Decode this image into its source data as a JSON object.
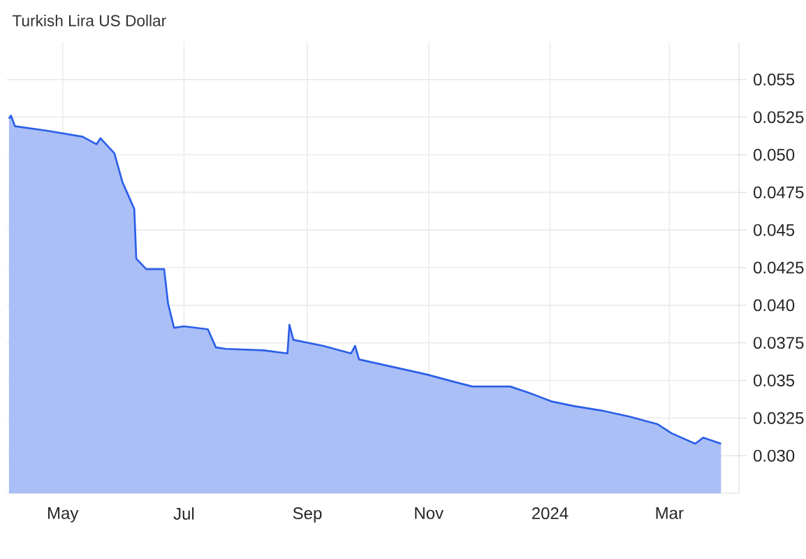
{
  "chart_data": {
    "type": "area",
    "title": "Turkish Lira US Dollar",
    "x": [
      "2023-04-04",
      "2023-04-05",
      "2023-04-07",
      "2023-04-23",
      "2023-05-11",
      "2023-05-18",
      "2023-05-20",
      "2023-05-27",
      "2023-05-31",
      "2023-06-03",
      "2023-06-06",
      "2023-06-07",
      "2023-06-12",
      "2023-06-21",
      "2023-06-23",
      "2023-06-26",
      "2023-07-01",
      "2023-07-13",
      "2023-07-17",
      "2023-07-22",
      "2023-08-10",
      "2023-08-22",
      "2023-08-23",
      "2023-08-25",
      "2023-09-09",
      "2023-09-23",
      "2023-09-25",
      "2023-09-27",
      "2023-10-14",
      "2023-10-31",
      "2023-11-14",
      "2023-11-23",
      "2023-12-12",
      "2023-12-21",
      "2024-01-02",
      "2024-01-13",
      "2024-01-27",
      "2024-02-10",
      "2024-02-24",
      "2024-03-02",
      "2024-03-14",
      "2024-03-18",
      "2024-03-27"
    ],
    "values": [
      0.0524,
      0.0526,
      0.0519,
      0.0516,
      0.0512,
      0.0507,
      0.0511,
      0.0501,
      0.0482,
      0.0473,
      0.0464,
      0.0431,
      0.0424,
      0.0424,
      0.0401,
      0.0385,
      0.0386,
      0.0384,
      0.0372,
      0.0371,
      0.037,
      0.0368,
      0.0387,
      0.0377,
      0.0373,
      0.0368,
      0.0373,
      0.0364,
      0.0359,
      0.0354,
      0.0349,
      0.0346,
      0.0346,
      0.0342,
      0.0336,
      0.0333,
      0.033,
      0.0326,
      0.0321,
      0.0315,
      0.0308,
      0.0312,
      0.0308
    ],
    "color": "#2b5fe8",
    "xlim": [
      "2023-04-03",
      "2024-04-05"
    ],
    "xticks": [
      {
        "value": "2023-05-01",
        "label": "May"
      },
      {
        "value": "2023-07-01",
        "label": "Jul"
      },
      {
        "value": "2023-09-01",
        "label": "Sep"
      },
      {
        "value": "2023-11-01",
        "label": "Nov"
      },
      {
        "value": "2024-01-01",
        "label": "2024"
      },
      {
        "value": "2024-03-01",
        "label": "Mar"
      }
    ],
    "ylim": [
      0.0275,
      0.0575
    ],
    "yticks": [
      {
        "value": 0.03,
        "label": "0.030"
      },
      0.0325,
      {
        "value": 0.035,
        "label": "0.035"
      },
      0.0375,
      {
        "value": 0.04,
        "label": "0.040"
      },
      0.0425,
      {
        "value": 0.045,
        "label": "0.045"
      },
      0.0475,
      {
        "value": 0.05,
        "label": "0.050"
      },
      0.0525,
      {
        "value": 0.055,
        "label": "0.055"
      }
    ],
    "grid": true
  }
}
